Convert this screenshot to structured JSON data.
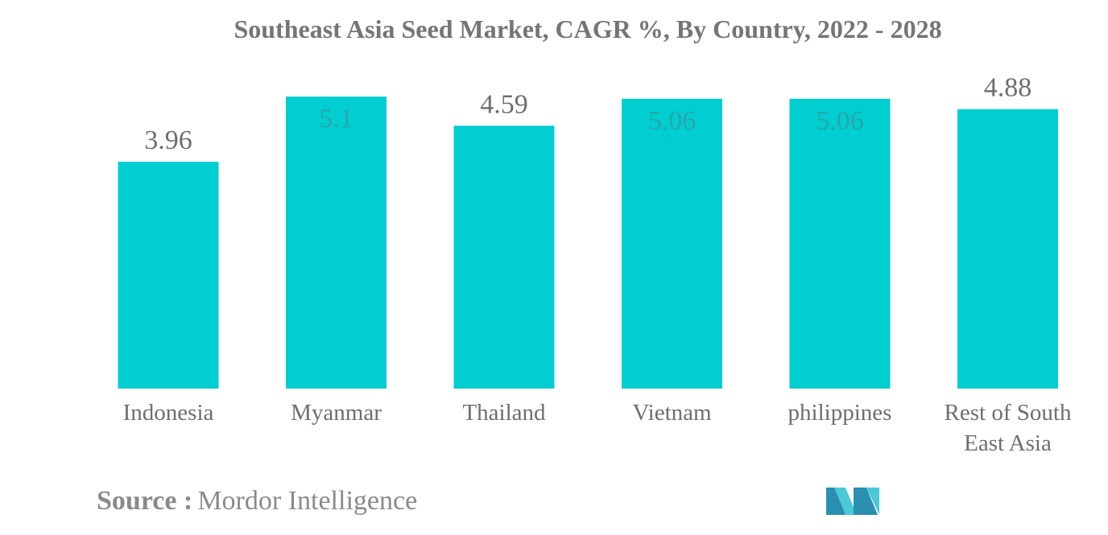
{
  "chart_data": {
    "type": "bar",
    "title": "Southeast Asia Seed Market, CAGR %, By Country, 2022 - 2028",
    "categories": [
      "Indonesia",
      "Myanmar",
      "Thailand",
      "Vietnam",
      "philippines",
      "Rest of South East Asia"
    ],
    "values": [
      3.96,
      5.1,
      4.59,
      5.06,
      5.06,
      4.88
    ],
    "value_labels": [
      "3.96",
      "5.1",
      "4.59",
      "5.06",
      "5.06",
      "4.88"
    ],
    "xlabel": "",
    "ylabel": "",
    "ylim": [
      0,
      5.1
    ],
    "grid": false,
    "legend": "none",
    "bar_color": "#00CED1"
  },
  "source": {
    "label": "Source :",
    "text": "Mordor Intelligence"
  },
  "colors": {
    "bar": "#00CED1",
    "label_text": "#6e6e6e",
    "inside_label_text": "#2aa7ab",
    "title_text": "#757575",
    "logo_dark": "#2a8fb0",
    "logo_light": "#4cc9d6"
  },
  "logo_icon": "mordor-intelligence-logo-icon"
}
